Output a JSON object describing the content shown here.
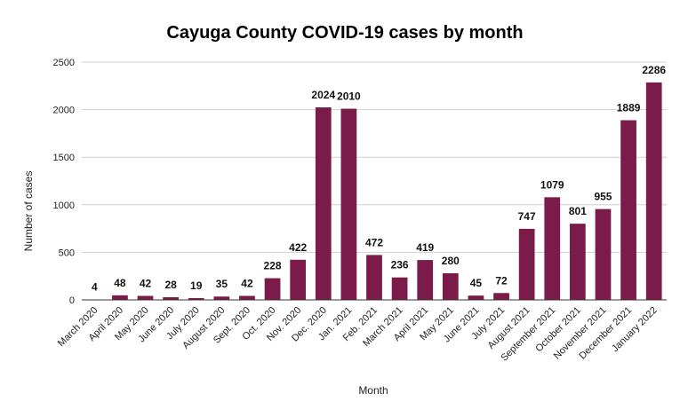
{
  "chart_data": {
    "type": "bar",
    "title": "Cayuga County COVID-19 cases by month",
    "xlabel": "Month",
    "ylabel": "Number of cases",
    "ylim": [
      0,
      2500
    ],
    "yticks": [
      0,
      500,
      1000,
      1500,
      2000,
      2500
    ],
    "grid": true,
    "bar_color": "#7b1b4a",
    "categories": [
      "March 2020",
      "April 2020",
      "May 2020",
      "June 2020",
      "July 2020",
      "August 2020",
      "Sept. 2020",
      "Oct. 2020",
      "Nov. 2020",
      "Dec. 2020",
      "Jan. 2021",
      "Feb. 2021",
      "March 2021",
      "April 2021",
      "May 2021",
      "June 2021",
      "July 2021",
      "August 2021",
      "September 2021",
      "October 2021",
      "November 2021",
      "December 2021",
      "January 2022"
    ],
    "values": [
      4,
      48,
      42,
      28,
      19,
      35,
      42,
      228,
      422,
      2024,
      2010,
      472,
      236,
      419,
      280,
      45,
      72,
      747,
      1079,
      801,
      955,
      1889,
      2286
    ]
  }
}
